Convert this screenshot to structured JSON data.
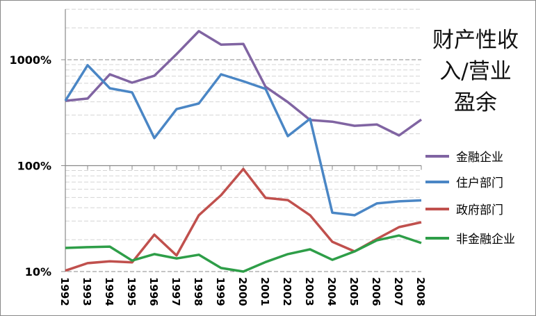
{
  "chart_data": {
    "type": "line",
    "title": "财产性收入/营业盈余",
    "title_lines": [
      "财产性收",
      "入/营业",
      "盈余"
    ],
    "y_scale": "log",
    "ylim": [
      10,
      3000
    ],
    "y_ticks": [
      10,
      100,
      1000
    ],
    "y_tick_labels": [
      "10%",
      "100%",
      "1000%"
    ],
    "x": [
      "1992",
      "1993",
      "1994",
      "1995",
      "1996",
      "1997",
      "1998",
      "1999",
      "2000",
      "2001",
      "2002",
      "2003",
      "2004",
      "2005",
      "2006",
      "2007",
      "2008"
    ],
    "legend_position": "right",
    "series": [
      {
        "name": "金融企业",
        "color": "#8064a2",
        "values": [
          410,
          430,
          728,
          608,
          706,
          1130,
          1860,
          1390,
          1410,
          555,
          398,
          270,
          260,
          238,
          245,
          193,
          272
        ]
      },
      {
        "name": "住户部门",
        "color": "#4a86c5",
        "values": [
          410,
          887,
          538,
          492,
          182,
          342,
          386,
          728,
          626,
          530,
          190,
          277,
          36,
          34,
          44,
          46,
          47
        ]
      },
      {
        "name": "政府部门",
        "color": "#c0504d",
        "values": [
          10.2,
          12,
          12.5,
          12.2,
          22.3,
          14.2,
          34,
          52.6,
          93,
          49.6,
          47.3,
          34,
          19.1,
          15.5,
          20.3,
          26.3,
          29.2
        ]
      },
      {
        "name": "非金融企业",
        "color": "#2e9e48",
        "values": [
          16.7,
          17,
          17.2,
          12.7,
          14.6,
          13.3,
          14.4,
          10.8,
          10,
          12.3,
          14.6,
          16.2,
          12.9,
          15.5,
          19.7,
          21.9,
          18.6
        ]
      }
    ]
  }
}
